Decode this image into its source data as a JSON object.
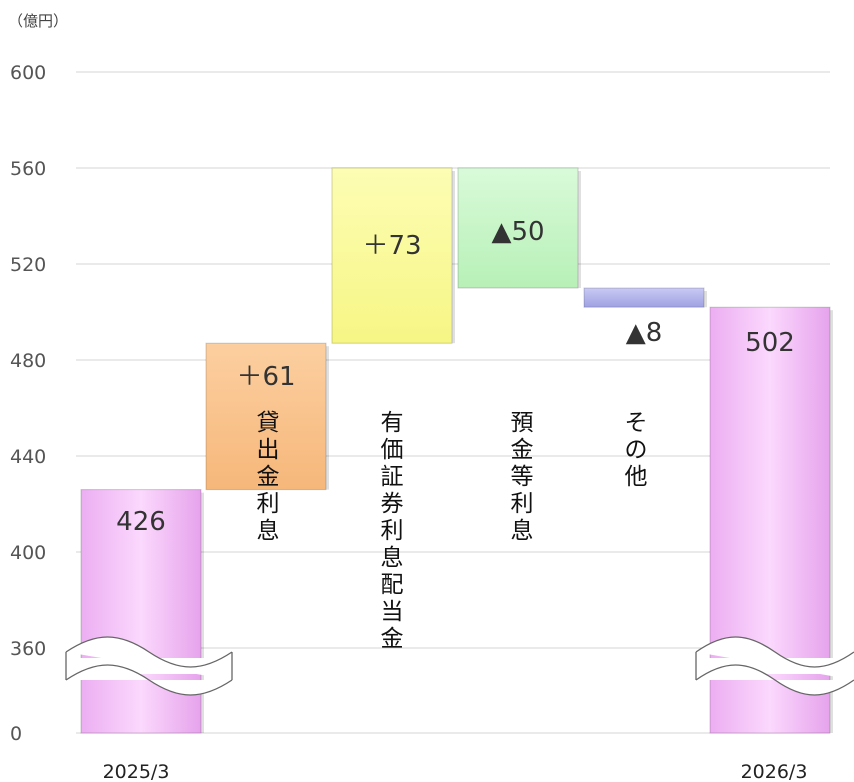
{
  "chart_data": {
    "type": "bar",
    "subtype": "waterfall",
    "unit_label": "（億円）",
    "y_ticks": [
      "600",
      "560",
      "520",
      "480",
      "440",
      "400",
      "360",
      "0"
    ],
    "axis_break": {
      "from": 0,
      "to": 360
    },
    "ylim": [
      0,
      600
    ],
    "grid": true,
    "bars": [
      {
        "category": "2025/3",
        "kind": "total",
        "start": 0,
        "end": 426,
        "value_label": "426",
        "color": "#f4c2f8"
      },
      {
        "category": "貸出金利息",
        "kind": "delta",
        "start": 426,
        "end": 487,
        "value_label": "＋61",
        "color": "#f9c48f"
      },
      {
        "category": "有価証券利息配当金",
        "kind": "delta",
        "start": 487,
        "end": 560,
        "value_label": "＋73",
        "color": "#fbfb98"
      },
      {
        "category": "預金等利息",
        "kind": "delta",
        "start": 560,
        "end": 510,
        "value_label": "▲50",
        "color": "#c8f7c8"
      },
      {
        "category": "その他",
        "kind": "delta",
        "start": 510,
        "end": 502,
        "value_label": "▲8",
        "color": "#b4b6ec"
      },
      {
        "category": "2026/3",
        "kind": "total",
        "start": 0,
        "end": 502,
        "value_label": "502",
        "color": "#f4c2f8"
      }
    ]
  }
}
